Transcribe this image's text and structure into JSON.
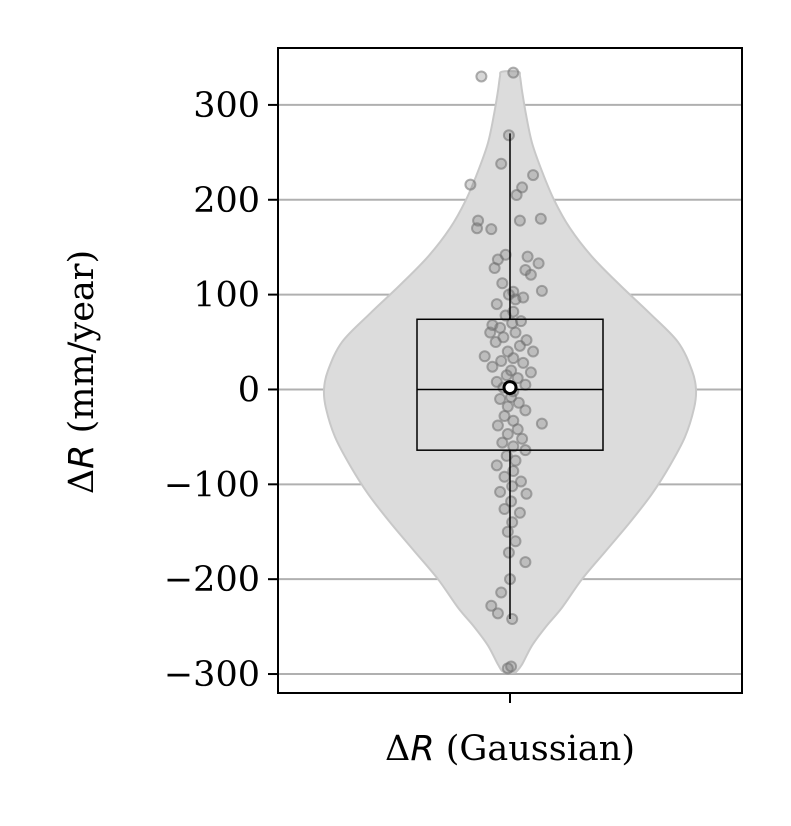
{
  "chart_data": {
    "type": "violin",
    "ylabel_prefix": "Δ",
    "ylabel_var": "R",
    "ylabel_suffix": " (mm/year)",
    "xtick_prefix": "Δ",
    "xtick_var": "R",
    "xtick_suffix": " (Gaussian)",
    "categories": [
      "ΔR (Gaussian)"
    ],
    "ylim": [
      -320,
      360
    ],
    "yticks": [
      -300,
      -200,
      -100,
      0,
      100,
      200,
      300
    ],
    "ytick_labels": [
      "−300",
      "−200",
      "−100",
      "0",
      "100",
      "200",
      "300"
    ],
    "grid": "horizontal",
    "box": {
      "q1": -64,
      "median": 0,
      "q3": 74,
      "whisker_low": -242,
      "whisker_high": 270,
      "mean": 2
    },
    "violin_extent": [
      -298,
      335
    ],
    "points": [
      [
        0.15,
        334
      ],
      [
        -1.3,
        330
      ],
      [
        -0.05,
        268
      ],
      [
        -0.4,
        238
      ],
      [
        1.05,
        226
      ],
      [
        -1.8,
        216
      ],
      [
        0.55,
        213
      ],
      [
        0.3,
        205
      ],
      [
        1.4,
        180
      ],
      [
        -1.45,
        178
      ],
      [
        0.45,
        178
      ],
      [
        -0.85,
        169
      ],
      [
        -1.5,
        170
      ],
      [
        -0.2,
        142
      ],
      [
        0.8,
        140
      ],
      [
        -0.55,
        137
      ],
      [
        0.7,
        126
      ],
      [
        1.3,
        133
      ],
      [
        0.95,
        121
      ],
      [
        -0.7,
        128
      ],
      [
        -0.35,
        112
      ],
      [
        0.15,
        103
      ],
      [
        -0.05,
        100
      ],
      [
        0.25,
        95
      ],
      [
        -0.6,
        90
      ],
      [
        1.45,
        104
      ],
      [
        0.6,
        97
      ],
      [
        0.15,
        82
      ],
      [
        -0.2,
        78
      ],
      [
        0.5,
        72
      ],
      [
        -0.8,
        68
      ],
      [
        -0.45,
        65
      ],
      [
        0.1,
        70
      ],
      [
        -0.9,
        60
      ],
      [
        0.25,
        60
      ],
      [
        -0.3,
        55
      ],
      [
        0.75,
        52
      ],
      [
        -0.65,
        50
      ],
      [
        0.45,
        46
      ],
      [
        1.05,
        40
      ],
      [
        -0.1,
        40
      ],
      [
        -1.15,
        35
      ],
      [
        0.15,
        33
      ],
      [
        -0.4,
        30
      ],
      [
        0.6,
        28
      ],
      [
        -0.8,
        24
      ],
      [
        0.05,
        20
      ],
      [
        0.95,
        18
      ],
      [
        -0.15,
        15
      ],
      [
        0.35,
        12
      ],
      [
        -0.6,
        8
      ],
      [
        0.7,
        5
      ],
      [
        -0.3,
        2
      ],
      [
        0.15,
        -2
      ],
      [
        0.05,
        -8
      ],
      [
        -0.45,
        -10
      ],
      [
        0.4,
        -14
      ],
      [
        -0.1,
        -18
      ],
      [
        0.7,
        -22
      ],
      [
        -0.25,
        -28
      ],
      [
        0.15,
        -33
      ],
      [
        1.45,
        -36
      ],
      [
        -0.55,
        -38
      ],
      [
        0.35,
        -42
      ],
      [
        -0.1,
        -47
      ],
      [
        0.55,
        -52
      ],
      [
        -0.35,
        -56
      ],
      [
        0.15,
        -60
      ],
      [
        0.7,
        -64
      ],
      [
        -0.15,
        -70
      ],
      [
        0.25,
        -75
      ],
      [
        -0.6,
        -80
      ],
      [
        0.15,
        -86
      ],
      [
        -0.25,
        -92
      ],
      [
        0.5,
        -97
      ],
      [
        0.1,
        -102
      ],
      [
        -0.45,
        -108
      ],
      [
        0.75,
        -110
      ],
      [
        0.05,
        -118
      ],
      [
        -0.25,
        -126
      ],
      [
        0.45,
        -130
      ],
      [
        0.1,
        -140
      ],
      [
        -0.1,
        -150
      ],
      [
        0.25,
        -160
      ],
      [
        -0.05,
        -172
      ],
      [
        0.7,
        -182
      ],
      [
        0.0,
        -200
      ],
      [
        -0.4,
        -214
      ],
      [
        -0.85,
        -228
      ],
      [
        -0.55,
        -236
      ],
      [
        0.1,
        -242
      ],
      [
        -0.1,
        -294
      ],
      [
        0.05,
        -292
      ]
    ],
    "colors": {
      "violin_fill": "#dcdcdc",
      "violin_edge": "#c8c8c8",
      "grid": "#b0b0b0",
      "points": "#707070",
      "box": "#000000"
    }
  }
}
